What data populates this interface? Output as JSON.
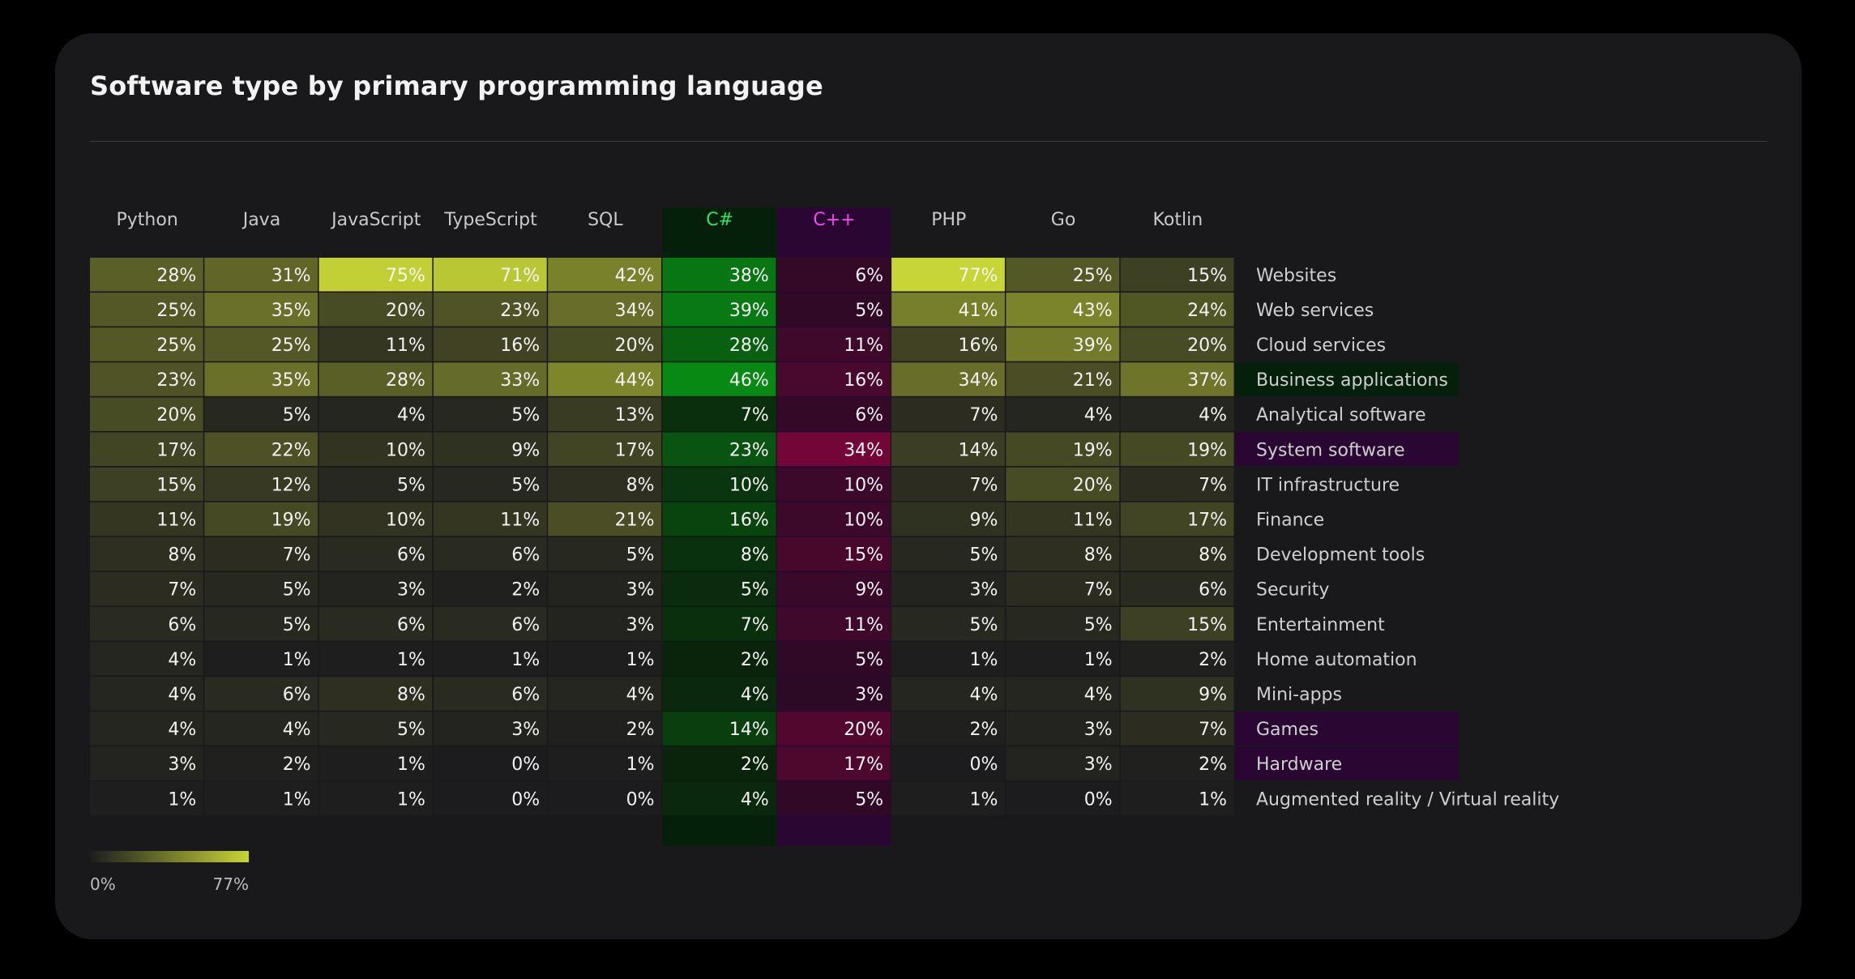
{
  "chart_data": {
    "type": "heatmap",
    "title": "Software type by primary programming language",
    "columns": [
      "Python",
      "Java",
      "JavaScript",
      "TypeScript",
      "SQL",
      "C#",
      "C++",
      "PHP",
      "Go",
      "Kotlin"
    ],
    "rows": [
      "Websites",
      "Web services",
      "Cloud services",
      "Business applications",
      "Analytical software",
      "System software",
      "IT infrastructure",
      "Finance",
      "Development tools",
      "Security",
      "Entertainment",
      "Home automation",
      "Mini-apps",
      "Games",
      "Hardware",
      "Augmented reality / Virtual reality"
    ],
    "values": [
      [
        28,
        31,
        75,
        71,
        42,
        38,
        6,
        77,
        25,
        15
      ],
      [
        25,
        35,
        20,
        23,
        34,
        39,
        5,
        41,
        43,
        24
      ],
      [
        25,
        25,
        11,
        16,
        20,
        28,
        11,
        16,
        39,
        20
      ],
      [
        23,
        35,
        28,
        33,
        44,
        46,
        16,
        34,
        21,
        37
      ],
      [
        20,
        5,
        4,
        5,
        13,
        7,
        6,
        7,
        4,
        4
      ],
      [
        17,
        22,
        10,
        9,
        17,
        23,
        34,
        14,
        19,
        19
      ],
      [
        15,
        12,
        5,
        5,
        8,
        10,
        10,
        7,
        20,
        7
      ],
      [
        11,
        19,
        10,
        11,
        21,
        16,
        10,
        9,
        11,
        17
      ],
      [
        8,
        7,
        6,
        6,
        5,
        8,
        15,
        5,
        8,
        8
      ],
      [
        7,
        5,
        3,
        2,
        3,
        5,
        9,
        3,
        7,
        6
      ],
      [
        6,
        5,
        6,
        6,
        3,
        7,
        11,
        5,
        5,
        15
      ],
      [
        4,
        1,
        1,
        1,
        1,
        2,
        5,
        1,
        1,
        2
      ],
      [
        4,
        6,
        8,
        6,
        4,
        4,
        3,
        4,
        4,
        9
      ],
      [
        4,
        4,
        5,
        3,
        2,
        14,
        20,
        2,
        3,
        7
      ],
      [
        3,
        2,
        1,
        0,
        1,
        2,
        17,
        0,
        3,
        2
      ],
      [
        1,
        1,
        1,
        0,
        0,
        4,
        5,
        1,
        0,
        1
      ]
    ],
    "value_suffix": "%",
    "highlight_columns": {
      "C#": "green",
      "C++": "magenta"
    },
    "highlight_rows": {
      "Business applications": "green",
      "System software": "magenta",
      "Games": "magenta",
      "Hardware": "magenta"
    },
    "colorscale": {
      "min": 0,
      "max": 77,
      "min_label": "0%",
      "max_label": "77%"
    }
  },
  "colors": {
    "base": "#1c1c1e",
    "default_max": "#c7d536",
    "green_max": "#06d11a",
    "magenta_max": "#d4004f",
    "green_header_bg": "#04200a",
    "magenta_header_bg": "#2a0733",
    "green_text": "#2fe36a",
    "magenta_text": "#f04bf0"
  }
}
